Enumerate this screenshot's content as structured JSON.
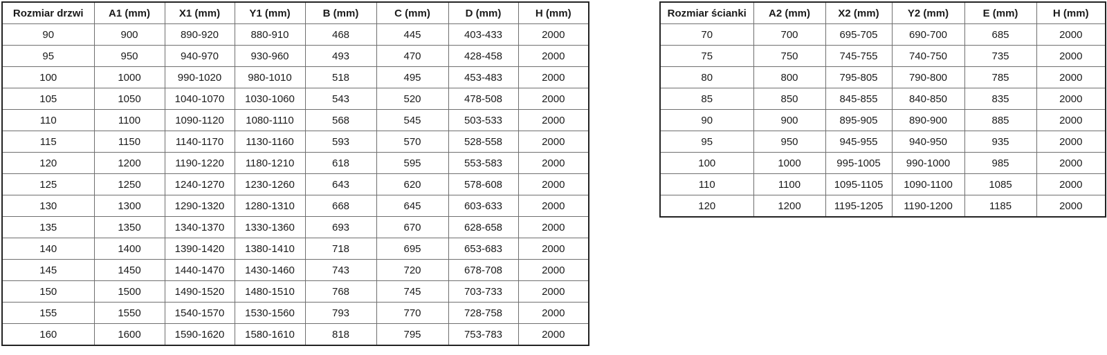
{
  "page": {
    "background_color": "#ffffff",
    "text_color": "#1a1a1a",
    "grid_line_color": "#6e6e6e",
    "outer_border_color": "#222222"
  },
  "tables": [
    {
      "name": "door-size-table",
      "headers": [
        "Rozmiar drzwi",
        "A1 (mm)",
        "X1 (mm)",
        "Y1 (mm)",
        "B (mm)",
        "C (mm)",
        "D (mm)",
        "H (mm)"
      ],
      "rows": [
        [
          "90",
          "900",
          "890-920",
          "880-910",
          "468",
          "445",
          "403-433",
          "2000"
        ],
        [
          "95",
          "950",
          "940-970",
          "930-960",
          "493",
          "470",
          "428-458",
          "2000"
        ],
        [
          "100",
          "1000",
          "990-1020",
          "980-1010",
          "518",
          "495",
          "453-483",
          "2000"
        ],
        [
          "105",
          "1050",
          "1040-1070",
          "1030-1060",
          "543",
          "520",
          "478-508",
          "2000"
        ],
        [
          "110",
          "1100",
          "1090-1120",
          "1080-1110",
          "568",
          "545",
          "503-533",
          "2000"
        ],
        [
          "115",
          "1150",
          "1140-1170",
          "1130-1160",
          "593",
          "570",
          "528-558",
          "2000"
        ],
        [
          "120",
          "1200",
          "1190-1220",
          "1180-1210",
          "618",
          "595",
          "553-583",
          "2000"
        ],
        [
          "125",
          "1250",
          "1240-1270",
          "1230-1260",
          "643",
          "620",
          "578-608",
          "2000"
        ],
        [
          "130",
          "1300",
          "1290-1320",
          "1280-1310",
          "668",
          "645",
          "603-633",
          "2000"
        ],
        [
          "135",
          "1350",
          "1340-1370",
          "1330-1360",
          "693",
          "670",
          "628-658",
          "2000"
        ],
        [
          "140",
          "1400",
          "1390-1420",
          "1380-1410",
          "718",
          "695",
          "653-683",
          "2000"
        ],
        [
          "145",
          "1450",
          "1440-1470",
          "1430-1460",
          "743",
          "720",
          "678-708",
          "2000"
        ],
        [
          "150",
          "1500",
          "1490-1520",
          "1480-1510",
          "768",
          "745",
          "703-733",
          "2000"
        ],
        [
          "155",
          "1550",
          "1540-1570",
          "1530-1560",
          "793",
          "770",
          "728-758",
          "2000"
        ],
        [
          "160",
          "1600",
          "1590-1620",
          "1580-1610",
          "818",
          "795",
          "753-783",
          "2000"
        ]
      ]
    },
    {
      "name": "wall-size-table",
      "headers": [
        "Rozmiar ścianki",
        "A2 (mm)",
        "X2 (mm)",
        "Y2 (mm)",
        "E (mm)",
        "H (mm)"
      ],
      "rows": [
        [
          "70",
          "700",
          "695-705",
          "690-700",
          "685",
          "2000"
        ],
        [
          "75",
          "750",
          "745-755",
          "740-750",
          "735",
          "2000"
        ],
        [
          "80",
          "800",
          "795-805",
          "790-800",
          "785",
          "2000"
        ],
        [
          "85",
          "850",
          "845-855",
          "840-850",
          "835",
          "2000"
        ],
        [
          "90",
          "900",
          "895-905",
          "890-900",
          "885",
          "2000"
        ],
        [
          "95",
          "950",
          "945-955",
          "940-950",
          "935",
          "2000"
        ],
        [
          "100",
          "1000",
          "995-1005",
          "990-1000",
          "985",
          "2000"
        ],
        [
          "110",
          "1100",
          "1095-1105",
          "1090-1100",
          "1085",
          "2000"
        ],
        [
          "120",
          "1200",
          "1195-1205",
          "1190-1200",
          "1185",
          "2000"
        ]
      ]
    }
  ]
}
